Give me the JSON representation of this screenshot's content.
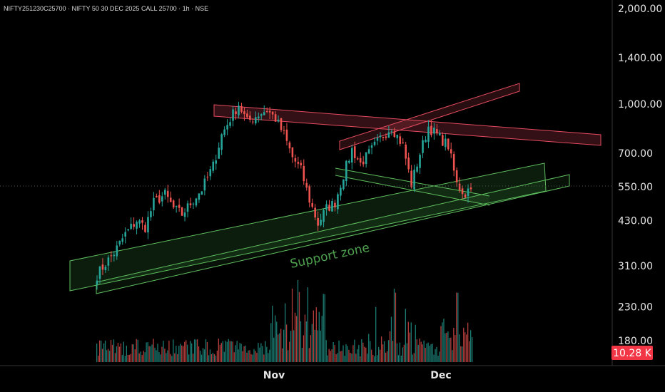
{
  "header": {
    "symbol": "NIFTY251230C25700 · NIFTY 50 30 DEC 2025 CALL 25700 · 1h · NSE"
  },
  "annotation": {
    "support_zone": "Support zone"
  },
  "volume_badge": {
    "text": "10.28 K",
    "color": "#f23645"
  },
  "colors": {
    "up": "#26a69a",
    "down": "#ef5350",
    "support": "#4caf50",
    "resistance": "#e54b5f"
  },
  "chart_data": {
    "type": "candlestick",
    "price_scale": "log",
    "ylim": [
      150,
      2100
    ],
    "y_ticks": [
      {
        "value": 2000,
        "label": "2,000.00"
      },
      {
        "value": 1400,
        "label": "1,400.00"
      },
      {
        "value": 1000,
        "label": "1,000.00"
      },
      {
        "value": 700,
        "label": "700.00"
      },
      {
        "value": 550,
        "label": "550.00"
      },
      {
        "value": 430,
        "label": "430.00"
      },
      {
        "value": 310,
        "label": "310.00"
      },
      {
        "value": 230,
        "label": "230.00"
      },
      {
        "value": 180,
        "label": "180.00"
      }
    ],
    "x_ticks": [
      "Nov",
      "Dec"
    ],
    "close_path": [
      {
        "t": 0,
        "p": 290
      },
      {
        "t": 3,
        "p": 315
      },
      {
        "t": 6,
        "p": 340
      },
      {
        "t": 10,
        "p": 390
      },
      {
        "t": 14,
        "p": 430
      },
      {
        "t": 17,
        "p": 410
      },
      {
        "t": 20,
        "p": 490
      },
      {
        "t": 24,
        "p": 520
      },
      {
        "t": 27,
        "p": 470
      },
      {
        "t": 30,
        "p": 450
      },
      {
        "t": 34,
        "p": 500
      },
      {
        "t": 37,
        "p": 540
      },
      {
        "t": 41,
        "p": 640
      },
      {
        "t": 44,
        "p": 800
      },
      {
        "t": 47,
        "p": 900
      },
      {
        "t": 50,
        "p": 1000
      },
      {
        "t": 53,
        "p": 880
      },
      {
        "t": 57,
        "p": 930
      },
      {
        "t": 60,
        "p": 960
      },
      {
        "t": 63,
        "p": 900
      },
      {
        "t": 66,
        "p": 800
      },
      {
        "t": 69,
        "p": 680
      },
      {
        "t": 72,
        "p": 620
      },
      {
        "t": 75,
        "p": 500
      },
      {
        "t": 78,
        "p": 420
      },
      {
        "t": 81,
        "p": 470
      },
      {
        "t": 84,
        "p": 490
      },
      {
        "t": 87,
        "p": 600
      },
      {
        "t": 90,
        "p": 720
      },
      {
        "t": 93,
        "p": 650
      },
      {
        "t": 96,
        "p": 700
      },
      {
        "t": 100,
        "p": 780
      },
      {
        "t": 104,
        "p": 850
      },
      {
        "t": 108,
        "p": 740
      },
      {
        "t": 111,
        "p": 560
      },
      {
        "t": 114,
        "p": 700
      },
      {
        "t": 117,
        "p": 850
      },
      {
        "t": 120,
        "p": 800
      },
      {
        "t": 124,
        "p": 740
      },
      {
        "t": 127,
        "p": 560
      },
      {
        "t": 130,
        "p": 520
      },
      {
        "t": 132,
        "p": 560
      }
    ],
    "volume_max": 10280,
    "drawings": [
      {
        "type": "parallel-channel",
        "name": "Support zone",
        "color": "green"
      },
      {
        "type": "parallel-channel",
        "name": "resistance",
        "color": "red"
      }
    ]
  }
}
